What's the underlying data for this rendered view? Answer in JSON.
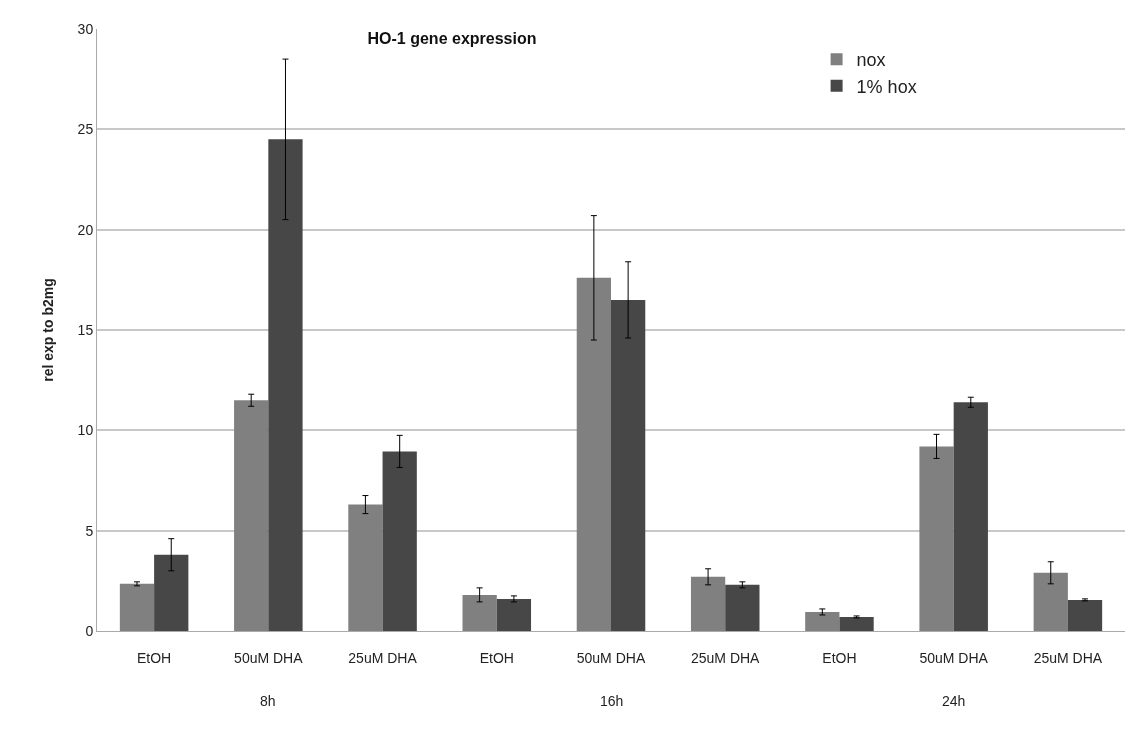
{
  "chart_data": {
    "type": "bar",
    "title": "HO-1 gene expression",
    "ylabel": "rel exp to b2mg",
    "categories": [
      "EtOH",
      "50uM DHA",
      "25uM DHA",
      "EtOH",
      "50uM DHA",
      "25uM DHA",
      "EtOH",
      "50uM DHA",
      "25uM DHA"
    ],
    "series": [
      {
        "name": "nox",
        "color": "#808080",
        "values": [
          2.35,
          11.5,
          6.3,
          1.8,
          17.6,
          2.7,
          0.95,
          9.2,
          2.9
        ],
        "errors": [
          0.1,
          0.3,
          0.45,
          0.35,
          3.1,
          0.4,
          0.15,
          0.6,
          0.55
        ]
      },
      {
        "name": "1% hox",
        "color": "#474747",
        "values": [
          3.8,
          24.5,
          8.95,
          1.6,
          16.5,
          2.3,
          0.7,
          11.4,
          1.55
        ],
        "errors": [
          0.8,
          4,
          0.8,
          0.15,
          1.9,
          0.15,
          0.05,
          0.25,
          0.05
        ]
      }
    ],
    "annotations": [
      "8h",
      "16h",
      "24h"
    ],
    "ylim": [
      0,
      30
    ],
    "yticks": [
      0,
      5,
      10,
      15,
      20,
      25,
      30
    ],
    "grid": "y",
    "legend": "top right"
  }
}
